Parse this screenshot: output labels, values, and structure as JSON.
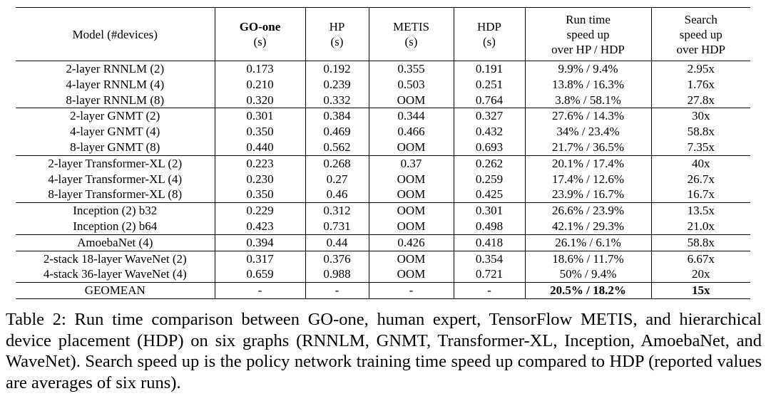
{
  "table": {
    "headers": {
      "model": "Model (#devices)",
      "goone": "GO-one",
      "goone_unit": "(s)",
      "hp": "HP",
      "hp_unit": "(s)",
      "metis": "METIS",
      "metis_unit": "(s)",
      "hdp": "HDP",
      "hdp_unit": "(s)",
      "runtime_l1": "Run time",
      "runtime_l2": "speed up",
      "runtime_l3": "over HP / HDP",
      "search_l1": "Search",
      "search_l2": "speed up",
      "search_l3": "over HDP"
    },
    "groups": [
      {
        "rows": [
          {
            "model": "2-layer RNNLM (2)",
            "goone": "0.173",
            "hp": "0.192",
            "metis": "0.355",
            "hdp": "0.191",
            "runtime": "9.9% / 9.4%",
            "search": "2.95x"
          },
          {
            "model": "4-layer RNNLM (4)",
            "goone": "0.210",
            "hp": "0.239",
            "metis": "0.503",
            "hdp": "0.251",
            "runtime": "13.8% / 16.3%",
            "search": "1.76x"
          },
          {
            "model": "8-layer RNNLM (8)",
            "goone": "0.320",
            "hp": "0.332",
            "metis": "OOM",
            "hdp": "0.764",
            "runtime": "3.8% / 58.1%",
            "search": "27.8x"
          }
        ]
      },
      {
        "rows": [
          {
            "model": "2-layer GNMT (2)",
            "goone": "0.301",
            "hp": "0.384",
            "metis": "0.344",
            "hdp": "0.327",
            "runtime": "27.6% / 14.3%",
            "search": "30x"
          },
          {
            "model": "4-layer GNMT (4)",
            "goone": "0.350",
            "hp": "0.469",
            "metis": "0.466",
            "hdp": "0.432",
            "runtime": "34% / 23.4%",
            "search": "58.8x"
          },
          {
            "model": "8-layer GNMT (8)",
            "goone": "0.440",
            "hp": "0.562",
            "metis": "OOM",
            "hdp": "0.693",
            "runtime": "21.7% / 36.5%",
            "search": "7.35x"
          }
        ]
      },
      {
        "rows": [
          {
            "model": "2-layer Transformer-XL (2)",
            "goone": "0.223",
            "hp": "0.268",
            "metis": "0.37",
            "hdp": "0.262",
            "runtime": "20.1% / 17.4%",
            "search": "40x"
          },
          {
            "model": "4-layer Transformer-XL (4)",
            "goone": "0.230",
            "hp": "0.27",
            "metis": "OOM",
            "hdp": "0.259",
            "runtime": "17.4% / 12.6%",
            "search": "26.7x"
          },
          {
            "model": "8-layer Transformer-XL (8)",
            "goone": "0.350",
            "hp": "0.46",
            "metis": "OOM",
            "hdp": "0.425",
            "runtime": "23.9% / 16.7%",
            "search": "16.7x"
          }
        ]
      },
      {
        "rows": [
          {
            "model": "Inception (2) b32",
            "goone": "0.229",
            "hp": "0.312",
            "metis": "OOM",
            "hdp": "0.301",
            "runtime": "26.6% / 23.9%",
            "search": "13.5x"
          },
          {
            "model": "Inception (2) b64",
            "goone": "0.423",
            "hp": "0.731",
            "metis": "OOM",
            "hdp": "0.498",
            "runtime": "42.1% / 29.3%",
            "search": "21.0x"
          }
        ]
      },
      {
        "rows": [
          {
            "model": "AmoebaNet (4)",
            "goone": "0.394",
            "hp": "0.44",
            "metis": "0.426",
            "hdp": "0.418",
            "runtime": "26.1% / 6.1%",
            "search": "58.8x"
          }
        ]
      },
      {
        "rows": [
          {
            "model": "2-stack 18-layer WaveNet (2)",
            "goone": "0.317",
            "hp": "0.376",
            "metis": "OOM",
            "hdp": "0.354",
            "runtime": "18.6% / 11.7%",
            "search": "6.67x"
          },
          {
            "model": "4-stack 36-layer WaveNet (4)",
            "goone": "0.659",
            "hp": "0.988",
            "metis": "OOM",
            "hdp": "0.721",
            "runtime": "50% / 9.4%",
            "search": "20x"
          }
        ]
      },
      {
        "rows": [
          {
            "model": "GEOMEAN",
            "goone": "-",
            "hp": "-",
            "metis": "-",
            "hdp": "-",
            "runtime": "20.5% / 18.2%",
            "search": "15x",
            "bold_tail": true
          }
        ]
      }
    ]
  },
  "caption": "Table 2: Run time comparison between GO-one, human expert, TensorFlow METIS, and hierarchical device placement (HDP) on six graphs (RNNLM, GNMT, Transformer-XL, Inception, AmoebaNet, and WaveNet). Search speed up is the policy network training time speed up compared to HDP (reported values are averages of six runs)."
}
